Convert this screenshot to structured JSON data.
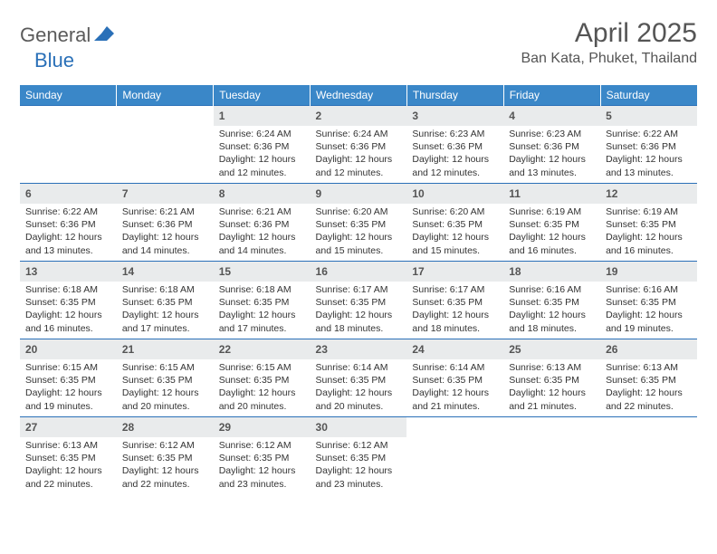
{
  "logo": {
    "general": "General",
    "blue": "Blue"
  },
  "title": "April 2025",
  "location": "Ban Kata, Phuket, Thailand",
  "colors": {
    "header_bg": "#3a87c8",
    "header_text": "#ffffff",
    "border": "#2a70b8",
    "daynum_bg": "#e9ebec",
    "text": "#333333",
    "logo_gray": "#5b5b5b",
    "logo_blue": "#2a70b8"
  },
  "fonts": {
    "title_size": 30,
    "location_size": 16,
    "header_size": 12,
    "daynum_size": 12,
    "cell_size": 10.5
  },
  "weekdays": [
    "Sunday",
    "Monday",
    "Tuesday",
    "Wednesday",
    "Thursday",
    "Friday",
    "Saturday"
  ],
  "weeks": [
    [
      null,
      null,
      {
        "day": "1",
        "sunrise": "Sunrise: 6:24 AM",
        "sunset": "Sunset: 6:36 PM",
        "daylight": "Daylight: 12 hours and 12 minutes."
      },
      {
        "day": "2",
        "sunrise": "Sunrise: 6:24 AM",
        "sunset": "Sunset: 6:36 PM",
        "daylight": "Daylight: 12 hours and 12 minutes."
      },
      {
        "day": "3",
        "sunrise": "Sunrise: 6:23 AM",
        "sunset": "Sunset: 6:36 PM",
        "daylight": "Daylight: 12 hours and 12 minutes."
      },
      {
        "day": "4",
        "sunrise": "Sunrise: 6:23 AM",
        "sunset": "Sunset: 6:36 PM",
        "daylight": "Daylight: 12 hours and 13 minutes."
      },
      {
        "day": "5",
        "sunrise": "Sunrise: 6:22 AM",
        "sunset": "Sunset: 6:36 PM",
        "daylight": "Daylight: 12 hours and 13 minutes."
      }
    ],
    [
      {
        "day": "6",
        "sunrise": "Sunrise: 6:22 AM",
        "sunset": "Sunset: 6:36 PM",
        "daylight": "Daylight: 12 hours and 13 minutes."
      },
      {
        "day": "7",
        "sunrise": "Sunrise: 6:21 AM",
        "sunset": "Sunset: 6:36 PM",
        "daylight": "Daylight: 12 hours and 14 minutes."
      },
      {
        "day": "8",
        "sunrise": "Sunrise: 6:21 AM",
        "sunset": "Sunset: 6:36 PM",
        "daylight": "Daylight: 12 hours and 14 minutes."
      },
      {
        "day": "9",
        "sunrise": "Sunrise: 6:20 AM",
        "sunset": "Sunset: 6:35 PM",
        "daylight": "Daylight: 12 hours and 15 minutes."
      },
      {
        "day": "10",
        "sunrise": "Sunrise: 6:20 AM",
        "sunset": "Sunset: 6:35 PM",
        "daylight": "Daylight: 12 hours and 15 minutes."
      },
      {
        "day": "11",
        "sunrise": "Sunrise: 6:19 AM",
        "sunset": "Sunset: 6:35 PM",
        "daylight": "Daylight: 12 hours and 16 minutes."
      },
      {
        "day": "12",
        "sunrise": "Sunrise: 6:19 AM",
        "sunset": "Sunset: 6:35 PM",
        "daylight": "Daylight: 12 hours and 16 minutes."
      }
    ],
    [
      {
        "day": "13",
        "sunrise": "Sunrise: 6:18 AM",
        "sunset": "Sunset: 6:35 PM",
        "daylight": "Daylight: 12 hours and 16 minutes."
      },
      {
        "day": "14",
        "sunrise": "Sunrise: 6:18 AM",
        "sunset": "Sunset: 6:35 PM",
        "daylight": "Daylight: 12 hours and 17 minutes."
      },
      {
        "day": "15",
        "sunrise": "Sunrise: 6:18 AM",
        "sunset": "Sunset: 6:35 PM",
        "daylight": "Daylight: 12 hours and 17 minutes."
      },
      {
        "day": "16",
        "sunrise": "Sunrise: 6:17 AM",
        "sunset": "Sunset: 6:35 PM",
        "daylight": "Daylight: 12 hours and 18 minutes."
      },
      {
        "day": "17",
        "sunrise": "Sunrise: 6:17 AM",
        "sunset": "Sunset: 6:35 PM",
        "daylight": "Daylight: 12 hours and 18 minutes."
      },
      {
        "day": "18",
        "sunrise": "Sunrise: 6:16 AM",
        "sunset": "Sunset: 6:35 PM",
        "daylight": "Daylight: 12 hours and 18 minutes."
      },
      {
        "day": "19",
        "sunrise": "Sunrise: 6:16 AM",
        "sunset": "Sunset: 6:35 PM",
        "daylight": "Daylight: 12 hours and 19 minutes."
      }
    ],
    [
      {
        "day": "20",
        "sunrise": "Sunrise: 6:15 AM",
        "sunset": "Sunset: 6:35 PM",
        "daylight": "Daylight: 12 hours and 19 minutes."
      },
      {
        "day": "21",
        "sunrise": "Sunrise: 6:15 AM",
        "sunset": "Sunset: 6:35 PM",
        "daylight": "Daylight: 12 hours and 20 minutes."
      },
      {
        "day": "22",
        "sunrise": "Sunrise: 6:15 AM",
        "sunset": "Sunset: 6:35 PM",
        "daylight": "Daylight: 12 hours and 20 minutes."
      },
      {
        "day": "23",
        "sunrise": "Sunrise: 6:14 AM",
        "sunset": "Sunset: 6:35 PM",
        "daylight": "Daylight: 12 hours and 20 minutes."
      },
      {
        "day": "24",
        "sunrise": "Sunrise: 6:14 AM",
        "sunset": "Sunset: 6:35 PM",
        "daylight": "Daylight: 12 hours and 21 minutes."
      },
      {
        "day": "25",
        "sunrise": "Sunrise: 6:13 AM",
        "sunset": "Sunset: 6:35 PM",
        "daylight": "Daylight: 12 hours and 21 minutes."
      },
      {
        "day": "26",
        "sunrise": "Sunrise: 6:13 AM",
        "sunset": "Sunset: 6:35 PM",
        "daylight": "Daylight: 12 hours and 22 minutes."
      }
    ],
    [
      {
        "day": "27",
        "sunrise": "Sunrise: 6:13 AM",
        "sunset": "Sunset: 6:35 PM",
        "daylight": "Daylight: 12 hours and 22 minutes."
      },
      {
        "day": "28",
        "sunrise": "Sunrise: 6:12 AM",
        "sunset": "Sunset: 6:35 PM",
        "daylight": "Daylight: 12 hours and 22 minutes."
      },
      {
        "day": "29",
        "sunrise": "Sunrise: 6:12 AM",
        "sunset": "Sunset: 6:35 PM",
        "daylight": "Daylight: 12 hours and 23 minutes."
      },
      {
        "day": "30",
        "sunrise": "Sunrise: 6:12 AM",
        "sunset": "Sunset: 6:35 PM",
        "daylight": "Daylight: 12 hours and 23 minutes."
      },
      null,
      null,
      null
    ]
  ]
}
